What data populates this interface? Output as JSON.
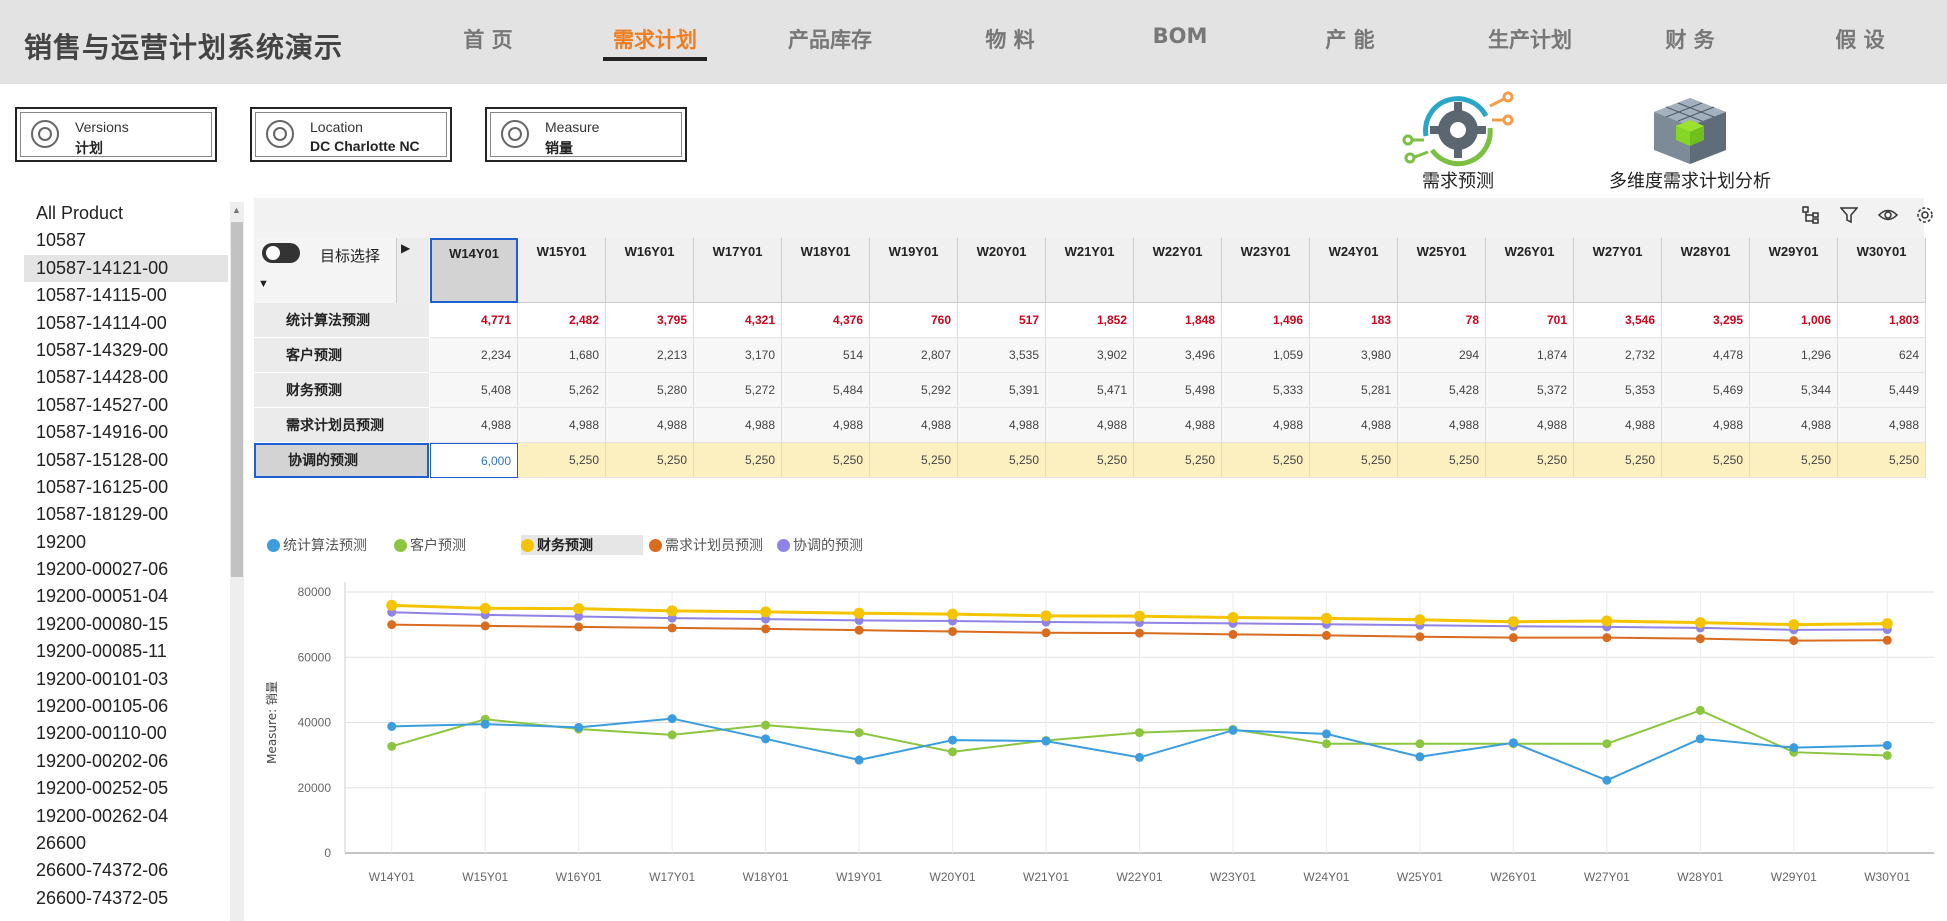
{
  "app": {
    "title": "销售与运营计划系统演示"
  },
  "nav": [
    {
      "label": "首 页",
      "active": false
    },
    {
      "label": "需求计划",
      "active": true
    },
    {
      "label": "产品库存",
      "active": false
    },
    {
      "label": "物 料",
      "active": false
    },
    {
      "label": "BOM",
      "active": false
    },
    {
      "label": "产 能",
      "active": false
    },
    {
      "label": "生产计划",
      "active": false
    },
    {
      "label": "财 务",
      "active": false
    },
    {
      "label": "假 设",
      "active": false
    }
  ],
  "selectors": [
    {
      "label": "Versions",
      "value": "计划"
    },
    {
      "label": "Location",
      "value": "DC Charlotte NC"
    },
    {
      "label": "Measure",
      "value": "销量"
    }
  ],
  "apps": [
    {
      "label": "需求预测",
      "icon": "gear-cycle-icon"
    },
    {
      "label": "多维度需求计划分析",
      "icon": "cube-icon"
    }
  ],
  "products": [
    "All Product",
    "10587",
    "10587-14121-00",
    "10587-14115-00",
    "10587-14114-00",
    "10587-14329-00",
    "10587-14428-00",
    "10587-14527-00",
    "10587-14916-00",
    "10587-15128-00",
    "10587-16125-00",
    "10587-18129-00",
    "19200",
    "19200-00027-06",
    "19200-00051-04",
    "19200-00080-15",
    "19200-00085-11",
    "19200-00101-03",
    "19200-00105-06",
    "19200-00110-00",
    "19200-00202-06",
    "19200-00252-05",
    "19200-00262-04",
    "26600",
    "26600-74372-06",
    "26600-74372-05"
  ],
  "selected_product_index": 2,
  "grid": {
    "toggle_label": "目标选择",
    "weeks": [
      "W14Y01",
      "W15Y01",
      "W16Y01",
      "W17Y01",
      "W18Y01",
      "W19Y01",
      "W20Y01",
      "W21Y01",
      "W22Y01",
      "W23Y01",
      "W24Y01",
      "W25Y01",
      "W26Y01",
      "W27Y01",
      "W28Y01",
      "W29Y01",
      "W30Y01"
    ],
    "rows": [
      {
        "label": "统计算法预测",
        "style": "red",
        "values": [
          "4,771",
          "2,482",
          "3,795",
          "4,321",
          "4,376",
          "760",
          "517",
          "1,852",
          "1,848",
          "1,496",
          "183",
          "78",
          "701",
          "3,546",
          "3,295",
          "1,006",
          "1,803"
        ]
      },
      {
        "label": "客户预测",
        "style": "",
        "values": [
          "2,234",
          "1,680",
          "2,213",
          "3,170",
          "514",
          "2,807",
          "3,535",
          "3,902",
          "3,496",
          "1,059",
          "3,980",
          "294",
          "1,874",
          "2,732",
          "4,478",
          "1,296",
          "624"
        ]
      },
      {
        "label": "财务预测",
        "style": "",
        "values": [
          "5,408",
          "5,262",
          "5,280",
          "5,272",
          "5,484",
          "5,292",
          "5,391",
          "5,471",
          "5,498",
          "5,333",
          "5,281",
          "5,428",
          "5,372",
          "5,353",
          "5,469",
          "5,344",
          "5,449"
        ]
      },
      {
        "label": "需求计划员预测",
        "style": "",
        "values": [
          "4,988",
          "4,988",
          "4,988",
          "4,988",
          "4,988",
          "4,988",
          "4,988",
          "4,988",
          "4,988",
          "4,988",
          "4,988",
          "4,988",
          "4,988",
          "4,988",
          "4,988",
          "4,988",
          "4,988"
        ]
      },
      {
        "label": "协调的预测",
        "style": "yellow",
        "values": [
          "6,000",
          "5,250",
          "5,250",
          "5,250",
          "5,250",
          "5,250",
          "5,250",
          "5,250",
          "5,250",
          "5,250",
          "5,250",
          "5,250",
          "5,250",
          "5,250",
          "5,250",
          "5,250",
          "5,250"
        ]
      }
    ]
  },
  "colors": {
    "accent": "#f07d1f",
    "selection": "#1e5fd1",
    "red_text": "#d0021b",
    "highlight": "#fcefc0"
  },
  "chart_data": {
    "type": "line",
    "ylabel": "Measure: 销量",
    "ylim": [
      0,
      80000
    ],
    "yticks": [
      0,
      20000,
      40000,
      60000,
      80000
    ],
    "categories": [
      "W14Y01",
      "W15Y01",
      "W16Y01",
      "W17Y01",
      "W18Y01",
      "W19Y01",
      "W20Y01",
      "W21Y01",
      "W22Y01",
      "W23Y01",
      "W24Y01",
      "W25Y01",
      "W26Y01",
      "W27Y01",
      "W28Y01",
      "W29Y01",
      "W30Y01"
    ],
    "legend_position": "top-left",
    "grid": true,
    "series": [
      {
        "name": "统计算法预测",
        "color": "#3b9ddd",
        "values": [
          38800,
          39500,
          38500,
          41200,
          35000,
          28500,
          34600,
          34300,
          29300,
          37600,
          36500,
          29500,
          33800,
          22300,
          35000,
          32300,
          33000
        ]
      },
      {
        "name": "客户预测",
        "color": "#8cc63f",
        "values": [
          32700,
          41000,
          38000,
          36200,
          39200,
          36900,
          31000,
          34500,
          36900,
          37900,
          33500,
          33500,
          33500,
          33500,
          43700,
          30900,
          29900
        ]
      },
      {
        "name": "财务预测",
        "color": "#f5c400",
        "values": [
          75900,
          75000,
          74900,
          74200,
          73900,
          73500,
          73200,
          72700,
          72600,
          72200,
          71900,
          71500,
          70900,
          71100,
          70600,
          70000,
          70300
        ]
      },
      {
        "name": "需求计划员预测",
        "color": "#d96c1e",
        "values": [
          70000,
          69600,
          69300,
          69000,
          68700,
          68300,
          67900,
          67500,
          67400,
          67000,
          66700,
          66300,
          66000,
          66000,
          65700,
          65100,
          65200
        ]
      },
      {
        "name": "协调的预测",
        "color": "#8f83e6",
        "values": [
          73800,
          73000,
          72500,
          72000,
          71700,
          71300,
          71100,
          70800,
          70600,
          70400,
          70100,
          69800,
          69500,
          69300,
          69000,
          68400,
          68500
        ]
      }
    ]
  }
}
